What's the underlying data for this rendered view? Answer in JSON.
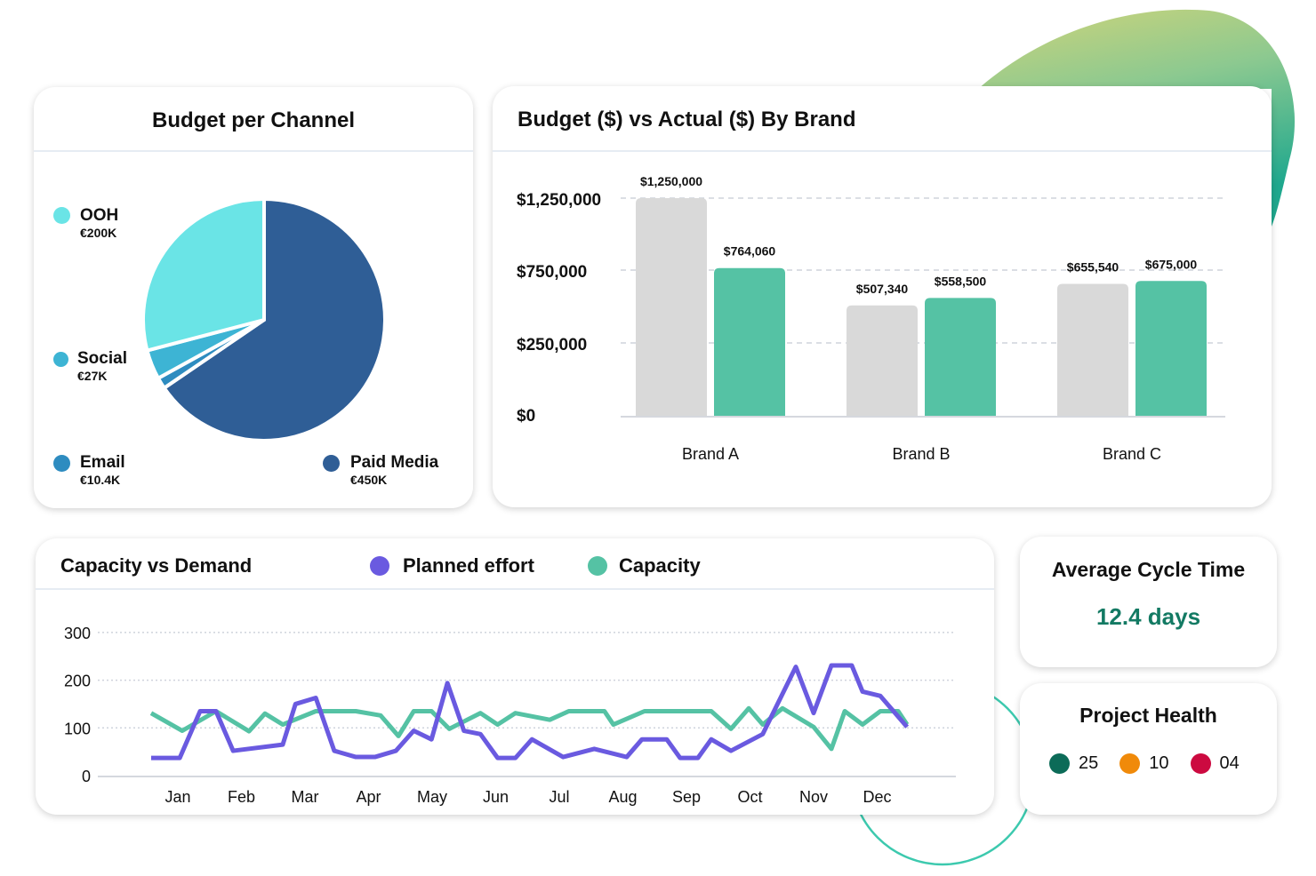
{
  "colors": {
    "ooh": "#6ae4e6",
    "social": "#3db4d4",
    "email": "#2e8cc0",
    "paid_media": "#2f5e96",
    "budget_bar": "#d9d9d9",
    "actual_bar": "#55c2a4",
    "planned": "#6a5ae0",
    "capacity": "#55c2a4",
    "cycle_value": "#137a63",
    "health_green": "#0c6b58",
    "health_orange": "#f08a0a",
    "health_red": "#cc0a40"
  },
  "pie_card": {
    "title": "Budget per Channel"
  },
  "bar_card": {
    "title": "Budget ($) vs Actual ($) By Brand"
  },
  "line_card": {
    "title": "Capacity vs Demand"
  },
  "cycle_card": {
    "title": "Average Cycle Time",
    "value": "12.4 days"
  },
  "health_card": {
    "title": "Project Health",
    "items": [
      {
        "value": "25",
        "color": "#0c6b58"
      },
      {
        "value": "10",
        "color": "#f08a0a"
      },
      {
        "value": "04",
        "color": "#cc0a40"
      }
    ]
  },
  "chart_data": [
    {
      "type": "pie",
      "title": "Budget per Channel",
      "slices": [
        {
          "name": "Paid Media",
          "label": "€450K",
          "value": 450,
          "color": "#2f5e96"
        },
        {
          "name": "Email",
          "label": "€10.4K",
          "value": 10.4,
          "color": "#2e8cc0"
        },
        {
          "name": "Social",
          "label": "€27K",
          "value": 27,
          "color": "#3db4d4"
        },
        {
          "name": "OOH",
          "label": "€200K",
          "value": 200,
          "color": "#6ae4e6"
        }
      ]
    },
    {
      "type": "bar",
      "title": "Budget ($) vs Actual ($) By Brand",
      "categories": [
        "Brand A",
        "Brand B",
        "Brand C"
      ],
      "series": [
        {
          "values": [
            1250000,
            507340,
            655540
          ],
          "labels": [
            "$1,250,000",
            "$507,340",
            "$655,540"
          ],
          "color": "#d9d9d9"
        },
        {
          "values": [
            764060,
            558500,
            675000
          ],
          "labels": [
            "$764,060",
            "$558,500",
            "$675,000"
          ],
          "color": "#55c2a4"
        }
      ],
      "yticks": [
        0,
        250000,
        750000,
        1250000
      ],
      "ytick_labels": [
        "$0",
        "$250,000",
        "$750,000",
        "$1,250,000"
      ],
      "grid": true
    },
    {
      "type": "line",
      "title": "Capacity vs Demand",
      "categories": [
        "Jan",
        "Feb",
        "Mar",
        "Apr",
        "May",
        "Jun",
        "Jul",
        "Aug",
        "Sep",
        "Oct",
        "Nov",
        "Dec"
      ],
      "yticks": [
        0,
        100,
        200,
        300
      ],
      "ylim": [
        0,
        300
      ],
      "grid": true,
      "legend": "top",
      "series": [
        {
          "name": "Planned effort",
          "color": "#6a5ae0",
          "x": [
            0.58,
            1.03,
            1.35,
            1.6,
            1.87,
            2.65,
            2.85,
            3.17,
            3.46,
            3.8,
            4.1,
            4.43,
            4.71,
            4.99,
            5.24,
            5.5,
            5.76,
            6.03,
            6.31,
            6.57,
            7.06,
            7.55,
            8.06,
            8.3,
            8.69,
            8.9,
            9.18,
            9.39,
            9.7,
            10.2,
            10.72,
            11.0,
            11.28,
            11.6,
            11.77,
            12.05,
            12.47
          ],
          "y": [
            37,
            37,
            135,
            135,
            52,
            65,
            150,
            163,
            52,
            39,
            39,
            52,
            94,
            76,
            194,
            94,
            87,
            37,
            37,
            76,
            39,
            56,
            39,
            76,
            76,
            37,
            37,
            76,
            52,
            87,
            228,
            131,
            231,
            231,
            176,
            167,
            102
          ]
        },
        {
          "name": "Capacity",
          "color": "#55c2a4",
          "x": [
            0.58,
            1.07,
            1.6,
            2.12,
            2.37,
            2.65,
            3.17,
            3.8,
            4.19,
            4.47,
            4.71,
            4.99,
            5.27,
            5.76,
            6.03,
            6.31,
            6.85,
            7.15,
            7.71,
            7.85,
            8.34,
            9.39,
            9.7,
            9.98,
            10.2,
            10.51,
            11.0,
            11.28,
            11.49,
            11.77,
            12.05,
            12.33,
            12.47
          ],
          "y": [
            131,
            94,
            135,
            93,
            130,
            107,
            135,
            135,
            126,
            83,
            135,
            135,
            98,
            131,
            107,
            131,
            117,
            135,
            135,
            107,
            135,
            135,
            98,
            141,
            107,
            141,
            102,
            56,
            135,
            107,
            135,
            135,
            107
          ]
        }
      ]
    }
  ]
}
